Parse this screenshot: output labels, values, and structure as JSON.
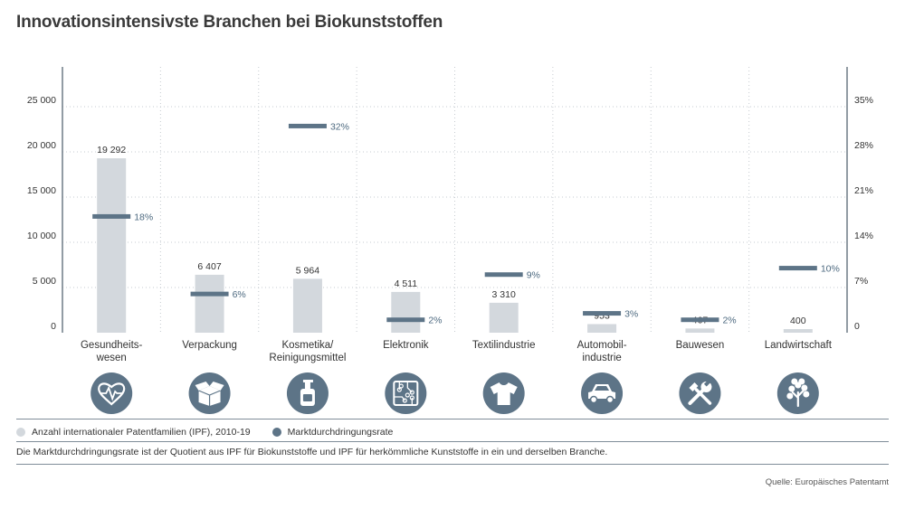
{
  "title": "Innovationsintensivste Branchen bei Biokunststoffen",
  "colors": {
    "bar": "#d3d8dd",
    "rate": "#5d7487",
    "rate_label": "#4e6a80",
    "icon_circle": "#5d7487",
    "axis": "#6f7b86",
    "grid_dot": "#c6cbd0"
  },
  "chart_data": {
    "type": "bar",
    "categories": [
      [
        "Gesundheits-",
        "wesen"
      ],
      [
        "Verpackung"
      ],
      [
        "Kosmetika/",
        "Reinigungsmittel"
      ],
      [
        "Elektronik"
      ],
      [
        "Textilindustrie"
      ],
      [
        "Automobil-",
        "industrie"
      ],
      [
        "Bauwesen"
      ],
      [
        "Landwirtschaft"
      ]
    ],
    "icons": [
      "heart-pulse-icon",
      "box-icon",
      "bottle-icon",
      "circuit-board-icon",
      "tshirt-icon",
      "car-icon",
      "tools-icon",
      "tree-icon"
    ],
    "series": [
      {
        "name": "Anzahl internationaler Patentfamilien (IPF), 2010-19",
        "axis": "left",
        "values": [
          19292,
          6407,
          5964,
          4511,
          3310,
          953,
          467,
          400
        ],
        "labels": [
          "19 292",
          "6 407",
          "5 964",
          "4 511",
          "3 310",
          "953",
          "467",
          "400"
        ]
      },
      {
        "name": "Marktdurchdringungsrate",
        "axis": "right",
        "values": [
          18,
          6,
          32,
          2,
          9,
          3,
          2,
          10
        ],
        "labels": [
          "18%",
          "6%",
          "32%",
          "2%",
          "9%",
          "3%",
          "2%",
          "10%"
        ]
      }
    ],
    "ylim_left": [
      0,
      25000
    ],
    "yticks_left": [
      0,
      5000,
      10000,
      15000,
      20000,
      25000
    ],
    "yticklabels_left": [
      "0",
      "5 000",
      "10 000",
      "15 000",
      "20 000",
      "25 000"
    ],
    "ylim_right": [
      0,
      35
    ],
    "yticks_right": [
      0,
      7,
      14,
      21,
      28,
      35
    ],
    "yticklabels_right": [
      "0",
      "7%",
      "14%",
      "21%",
      "28%",
      "35%"
    ]
  },
  "legend": {
    "bars": "Anzahl internationaler Patentfamilien (IPF), 2010-19",
    "rate": "Marktdurchdringungsrate"
  },
  "note": "Die Marktdurchdringungsrate ist der Quotient aus IPF für Biokunststoffe und IPF für herkömmliche Kunststoffe in ein und derselben Branche.",
  "source": "Quelle: Europäisches Patentamt"
}
